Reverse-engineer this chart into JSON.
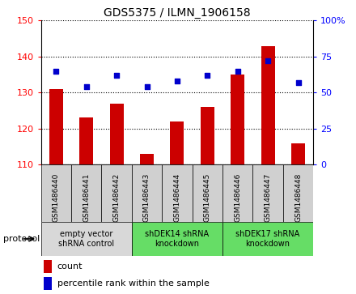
{
  "title": "GDS5375 / ILMN_1906158",
  "samples": [
    "GSM1486440",
    "GSM1486441",
    "GSM1486442",
    "GSM1486443",
    "GSM1486444",
    "GSM1486445",
    "GSM1486446",
    "GSM1486447",
    "GSM1486448"
  ],
  "counts": [
    131,
    123,
    127,
    113,
    122,
    126,
    135,
    143,
    116
  ],
  "percentiles": [
    65,
    54,
    62,
    54,
    58,
    62,
    65,
    72,
    57
  ],
  "ylim_left": [
    110,
    150
  ],
  "ylim_right": [
    0,
    100
  ],
  "yticks_left": [
    110,
    120,
    130,
    140,
    150
  ],
  "yticks_right": [
    0,
    25,
    50,
    75,
    100
  ],
  "bar_color": "#cc0000",
  "dot_color": "#0000cc",
  "bar_width": 0.45,
  "group_configs": [
    {
      "label": "empty vector\nshRNA control",
      "start": 0,
      "end": 3,
      "color": "#d8d8d8"
    },
    {
      "label": "shDEK14 shRNA\nknockdown",
      "start": 3,
      "end": 6,
      "color": "#66dd66"
    },
    {
      "label": "shDEK17 shRNA\nknockdown",
      "start": 6,
      "end": 9,
      "color": "#66dd66"
    }
  ],
  "sample_cell_color": "#d0d0d0",
  "protocol_label": "protocol",
  "legend_count_label": "count",
  "legend_percentile_label": "percentile rank within the sample"
}
